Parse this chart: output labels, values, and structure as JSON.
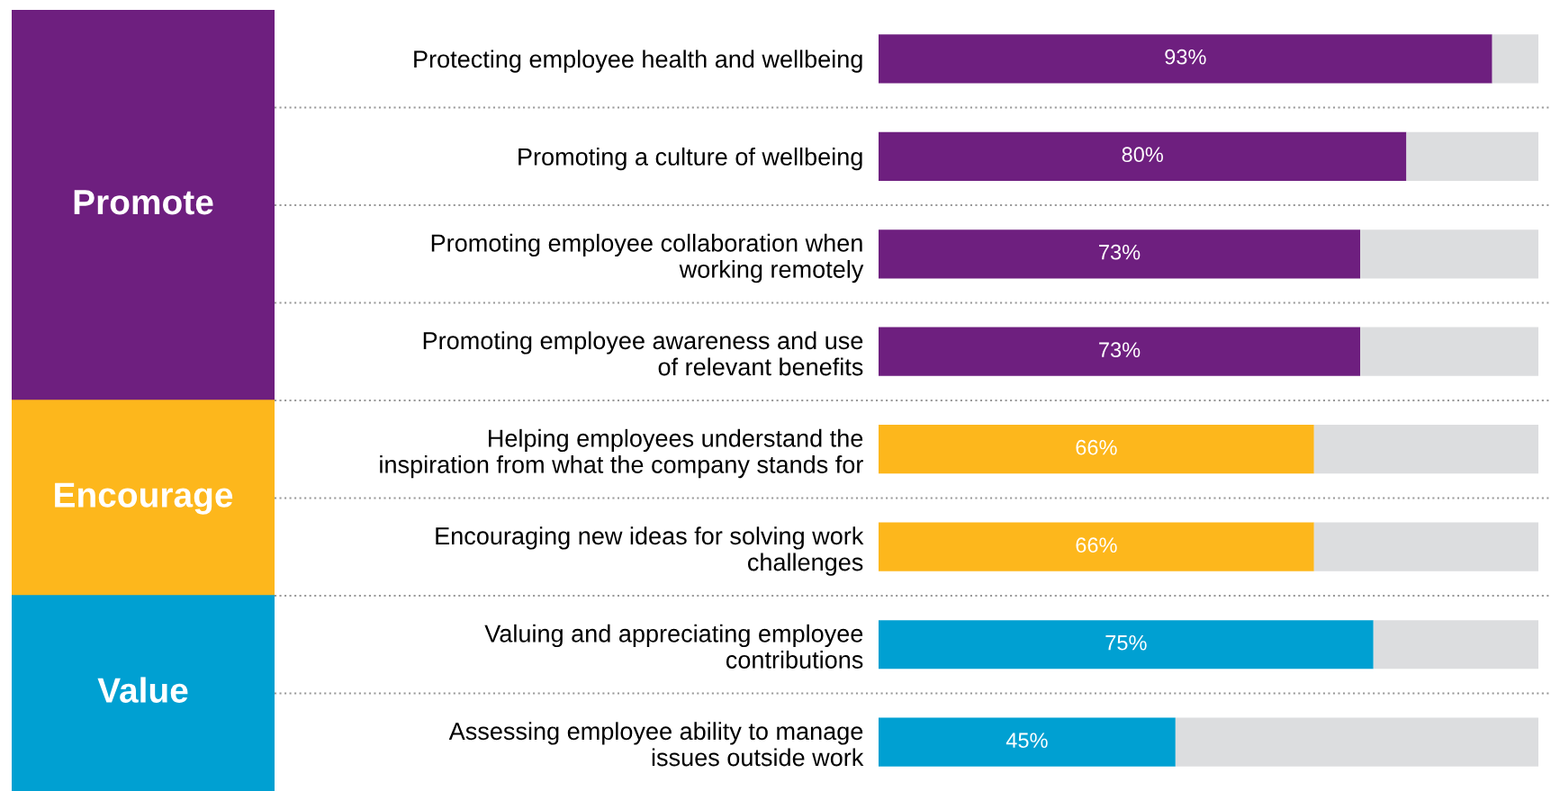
{
  "chart_data": {
    "type": "bar",
    "orientation": "horizontal",
    "stacked": true,
    "categories": [
      "Protecting employee health and wellbeing",
      "Promoting a culture of wellbeing",
      "Promoting employee collaboration when\nworking remotely",
      "Promoting employee awareness and use\nof relevant benefits",
      "Helping employees understand the\ninspiration from what the company stands for",
      "Encouraging new ideas for solving work\nchallenges",
      "Valuing and appreciating employee\ncontributions",
      "Assessing employee ability to manage\nissues outside work"
    ],
    "series": [
      {
        "values": [
          93,
          80,
          73,
          73,
          66,
          66,
          75,
          45
        ],
        "colors": [
          "#6e1f7f",
          "#6e1f7f",
          "#6e1f7f",
          "#6e1f7f",
          "#fdb71c",
          "#fdb71c",
          "#00a0d2",
          "#00a0d2"
        ],
        "value_labels": [
          "93%",
          "80%",
          "73%",
          "73%",
          "66%",
          "66%",
          "75%",
          "45%"
        ]
      },
      {
        "values": [
          7,
          20,
          27,
          27,
          34,
          34,
          25,
          55
        ],
        "color": "#dcdddf"
      }
    ],
    "annotations": [
      "Promote",
      "Encourage",
      "Value"
    ],
    "xlim": [
      0,
      100
    ],
    "tick_labels": "y",
    "grid": false,
    "legend": false
  }
}
